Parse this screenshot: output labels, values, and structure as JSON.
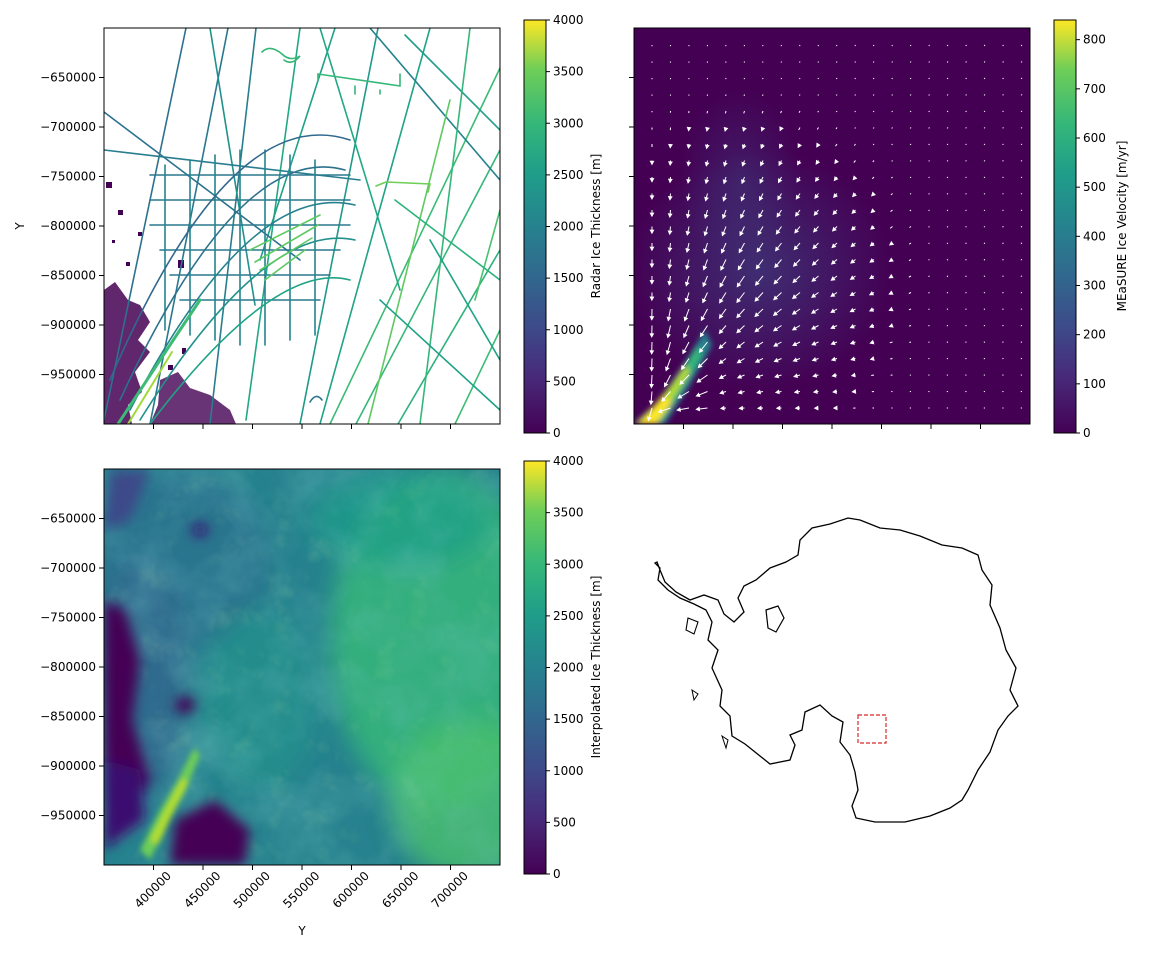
{
  "figure": {
    "panels": {
      "radar": {
        "ylabel": "Y",
        "cbar_label": "Radar Ice Thickness [m]"
      },
      "velocity": {
        "cbar_label": "MEaSURE Ice Velocity [m/yr]"
      },
      "interp": {
        "ylabel": "",
        "xlabel": "Y",
        "cbar_label": "Interpolated Ice Thickness [m]"
      },
      "inset_map": {
        "subject": "Antarctica",
        "highlight_box_color": "#d62728"
      }
    }
  },
  "chart_data": [
    {
      "type": "heatmap",
      "subtype": "radar flight-line thickness (scatter on map)",
      "xlim": [
        350000,
        750000
      ],
      "ylim": [
        -1000000,
        -600000
      ],
      "xticks": [
        400000,
        450000,
        500000,
        550000,
        600000,
        650000,
        700000
      ],
      "xtick_labels_shown": false,
      "yticks": [
        -650000,
        -700000,
        -750000,
        -800000,
        -850000,
        -900000,
        -950000
      ],
      "ytick_labels": [
        "−650000",
        "−700000",
        "−750000",
        "−800000",
        "−850000",
        "−900000",
        "−950000"
      ],
      "ylabel": "Y",
      "colorbar": {
        "label": "Radar Ice Thickness [m]",
        "min": 0,
        "max": 4000,
        "colormap": "viridis",
        "ticks": [
          0,
          500,
          1000,
          1500,
          2000,
          2500,
          3000,
          3500,
          4000
        ]
      }
    },
    {
      "type": "heatmap",
      "subtype": "ice velocity with quiver arrows",
      "xlim": [
        350000,
        750000
      ],
      "ylim": [
        -1000000,
        -600000
      ],
      "colorbar": {
        "label": "MEaSURE Ice Velocity [m/yr]",
        "min": 0,
        "max": 840,
        "colormap": "viridis",
        "ticks": [
          0,
          100,
          200,
          300,
          400,
          500,
          600,
          700,
          800
        ]
      }
    },
    {
      "type": "heatmap",
      "subtype": "interpolated ice thickness",
      "xlim": [
        350000,
        750000
      ],
      "ylim": [
        -1000000,
        -600000
      ],
      "xticks": [
        400000,
        450000,
        500000,
        550000,
        600000,
        650000,
        700000
      ],
      "xtick_labels": [
        "400000",
        "450000",
        "500000",
        "550000",
        "600000",
        "650000",
        "700000"
      ],
      "yticks": [
        -650000,
        -700000,
        -750000,
        -800000,
        -850000,
        -900000,
        -950000
      ],
      "ytick_labels": [
        "−650000",
        "−700000",
        "−750000",
        "−800000",
        "−850000",
        "−900000",
        "−950000"
      ],
      "xlabel": "Y",
      "colorbar": {
        "label": "Interpolated Ice Thickness [m]",
        "min": 0,
        "max": 4000,
        "colormap": "viridis",
        "ticks": [
          0,
          500,
          1000,
          1500,
          2000,
          2500,
          3000,
          3500,
          4000
        ]
      }
    }
  ]
}
